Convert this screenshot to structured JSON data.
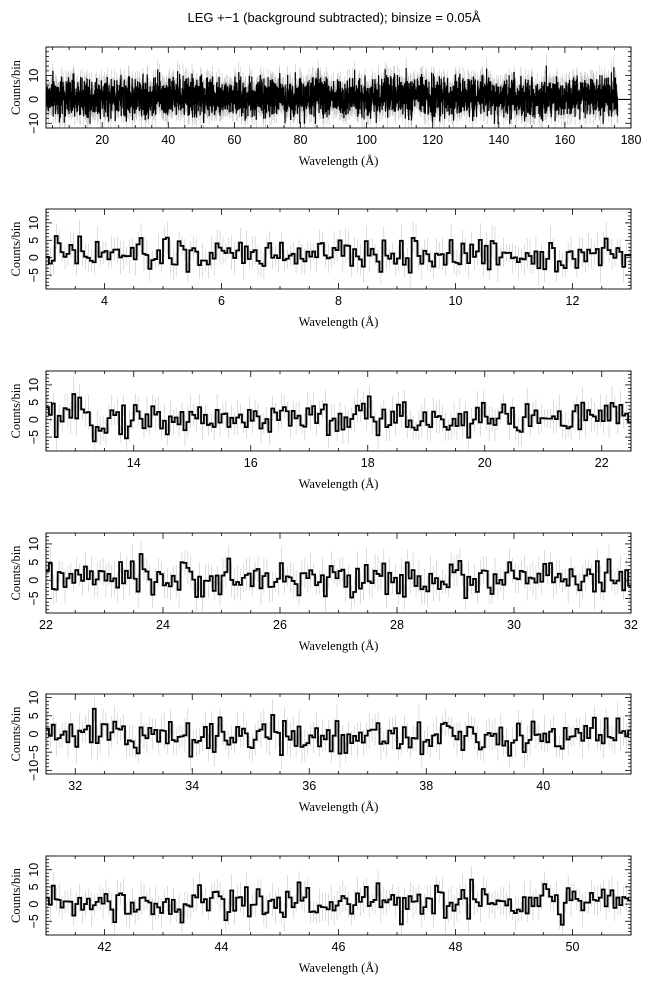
{
  "figure": {
    "title": "LEG +−1 (background subtracted); binsize = 0.05Å"
  },
  "chart_data": [
    {
      "type": "line",
      "step": true,
      "error_bars": true,
      "xlabel": "Wavelength (Å)",
      "ylabel": "Counts/bin",
      "xlim": [
        3,
        180
      ],
      "ylim": [
        -12,
        22
      ],
      "xticks": [
        20,
        40,
        60,
        80,
        100,
        120,
        140,
        160,
        180
      ],
      "yticks": [
        -10,
        0,
        10
      ],
      "series": [
        {
          "x_range": [
            3,
            176
          ],
          "binsize": 0.05,
          "y_range_approx": [
            -10,
            15
          ]
        }
      ]
    },
    {
      "type": "line",
      "step": true,
      "error_bars": true,
      "xlabel": "Wavelength (Å)",
      "ylabel": "Counts/bin",
      "xlim": [
        3,
        13
      ],
      "ylim": [
        -9,
        14
      ],
      "xticks": [
        4,
        6,
        8,
        10,
        12
      ],
      "yticks": [
        -5,
        0,
        5,
        10
      ],
      "series": [
        {
          "x_range": [
            3,
            13
          ],
          "binsize": 0.05,
          "y_range_approx": [
            -5,
            9
          ]
        }
      ]
    },
    {
      "type": "line",
      "step": true,
      "error_bars": true,
      "xlabel": "Wavelength (Å)",
      "ylabel": "Counts/bin",
      "xlim": [
        12.5,
        22.5
      ],
      "ylim": [
        -9,
        14
      ],
      "xticks": [
        14,
        16,
        18,
        20,
        22
      ],
      "yticks": [
        -5,
        0,
        5,
        10
      ],
      "series": [
        {
          "x_range": [
            12.5,
            22.5
          ],
          "binsize": 0.05,
          "y_range_approx": [
            -7,
            9
          ]
        }
      ]
    },
    {
      "type": "line",
      "step": true,
      "error_bars": true,
      "xlabel": "Wavelength (Å)",
      "ylabel": "Counts/bin",
      "xlim": [
        22,
        32
      ],
      "ylim": [
        -9,
        13
      ],
      "xticks": [
        22,
        24,
        26,
        28,
        30,
        32
      ],
      "yticks": [
        -5,
        0,
        5,
        10
      ],
      "series": [
        {
          "x_range": [
            22,
            32
          ],
          "binsize": 0.05,
          "y_range_approx": [
            -6,
            8
          ]
        }
      ]
    },
    {
      "type": "line",
      "step": true,
      "error_bars": true,
      "xlabel": "Wavelength (Å)",
      "ylabel": "Counts/bin",
      "xlim": [
        31.5,
        41.5
      ],
      "ylim": [
        -11,
        11
      ],
      "xticks": [
        32,
        34,
        36,
        38,
        40
      ],
      "yticks": [
        -10,
        -5,
        0,
        5,
        10
      ],
      "series": [
        {
          "x_range": [
            31.5,
            41.5
          ],
          "binsize": 0.05,
          "y_range_approx": [
            -8,
            7
          ]
        }
      ]
    },
    {
      "type": "line",
      "step": true,
      "error_bars": true,
      "xlabel": "Wavelength (Å)",
      "ylabel": "Counts/bin",
      "xlim": [
        41,
        51
      ],
      "ylim": [
        -9,
        14
      ],
      "xticks": [
        42,
        44,
        46,
        48,
        50
      ],
      "yticks": [
        -5,
        0,
        5,
        10
      ],
      "series": [
        {
          "x_range": [
            41,
            51
          ],
          "binsize": 0.05,
          "y_range_approx": [
            -6,
            10
          ]
        }
      ]
    }
  ]
}
